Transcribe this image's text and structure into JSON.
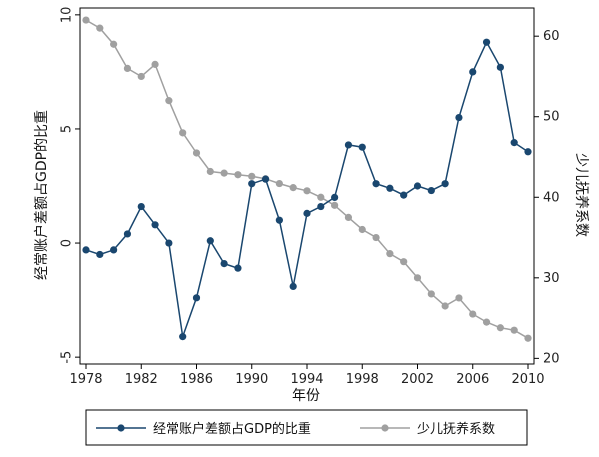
{
  "chart_data": {
    "type": "line",
    "title": "",
    "xlabel": "年份",
    "ylabel_left": "经常账户差额占GDP的比重",
    "ylabel_right": "少儿抚养系数",
    "x": [
      1978,
      1979,
      1980,
      1981,
      1982,
      1983,
      1984,
      1985,
      1986,
      1987,
      1988,
      1989,
      1990,
      1991,
      1992,
      1993,
      1994,
      1995,
      1996,
      1997,
      1998,
      1999,
      2000,
      2001,
      2002,
      2003,
      2004,
      2005,
      2006,
      2007,
      2008,
      2009,
      2010
    ],
    "x_ticks": [
      1978,
      1982,
      1986,
      1990,
      1994,
      1998,
      2002,
      2006,
      2010
    ],
    "y_left_ticks": [
      -5,
      0,
      5,
      10
    ],
    "y_left_lim": [
      -5.3,
      10.3
    ],
    "y_right_ticks": [
      20,
      30,
      40,
      50,
      60
    ],
    "y_right_lim": [
      19.3,
      63.5
    ],
    "legend_position": "bottom",
    "series": [
      {
        "name": "经常账户差额占GDP的比重",
        "axis": "left",
        "color": "#1a476f",
        "values": [
          -0.3,
          -0.5,
          -0.3,
          0.4,
          1.6,
          0.8,
          0.0,
          -4.1,
          -2.4,
          0.1,
          -0.9,
          -1.1,
          2.6,
          2.8,
          1.0,
          -1.9,
          1.3,
          1.6,
          2.0,
          4.3,
          4.2,
          2.6,
          2.4,
          2.1,
          2.5,
          2.3,
          2.6,
          5.5,
          7.5,
          8.8,
          7.7,
          4.4,
          4.0
        ]
      },
      {
        "name": "少儿抚养系数",
        "axis": "right",
        "color": "#a0a0a0",
        "values": [
          62.0,
          61.0,
          59.0,
          56.0,
          55.0,
          56.5,
          52.0,
          48.0,
          45.5,
          43.2,
          43.0,
          42.8,
          42.6,
          42.3,
          41.7,
          41.2,
          40.8,
          40.0,
          39.0,
          37.5,
          36.0,
          35.0,
          33.0,
          32.0,
          30.0,
          28.0,
          26.5,
          27.5,
          25.5,
          24.5,
          23.8,
          23.5,
          22.5
        ]
      }
    ]
  }
}
